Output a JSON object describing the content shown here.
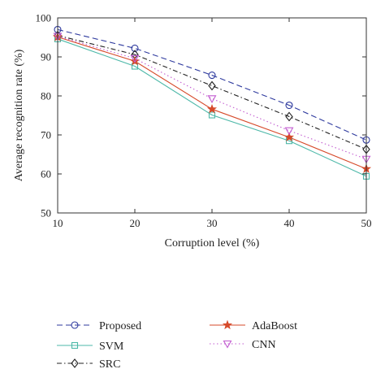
{
  "chart_data": {
    "type": "line",
    "title": "",
    "xlabel": "Corruption level (%)",
    "ylabel": "Average recognition rate (%)",
    "xlim": [
      10,
      50
    ],
    "ylim": [
      50,
      100
    ],
    "x": [
      10,
      20,
      30,
      40,
      50
    ],
    "xticks": [
      "10",
      "20",
      "30",
      "40",
      "50"
    ],
    "yticks": [
      "50",
      "60",
      "70",
      "80",
      "90",
      "100"
    ],
    "grid": false,
    "legend_position": "below plot",
    "series": [
      {
        "name": "Proposed",
        "values": [
          97.0,
          92.2,
          85.3,
          77.6,
          68.7
        ],
        "color": "#2e3a9e",
        "marker": "circle",
        "line": "dashed"
      },
      {
        "name": "SVM",
        "values": [
          94.6,
          87.6,
          75.1,
          68.5,
          59.4
        ],
        "color": "#4cb8a8",
        "marker": "square",
        "line": "solid"
      },
      {
        "name": "SRC",
        "values": [
          95.5,
          90.6,
          82.6,
          74.7,
          66.3
        ],
        "color": "#222222",
        "marker": "diamond",
        "line": "dashdot"
      },
      {
        "name": "AdaBoost",
        "values": [
          95.1,
          88.9,
          76.6,
          69.4,
          61.3
        ],
        "color": "#d64a2a",
        "marker": "star",
        "line": "solid"
      },
      {
        "name": "CNN",
        "values": [
          95.3,
          89.6,
          79.3,
          71.1,
          63.8
        ],
        "color": "#c25bd0",
        "marker": "triangle-down",
        "line": "dotted"
      }
    ]
  }
}
